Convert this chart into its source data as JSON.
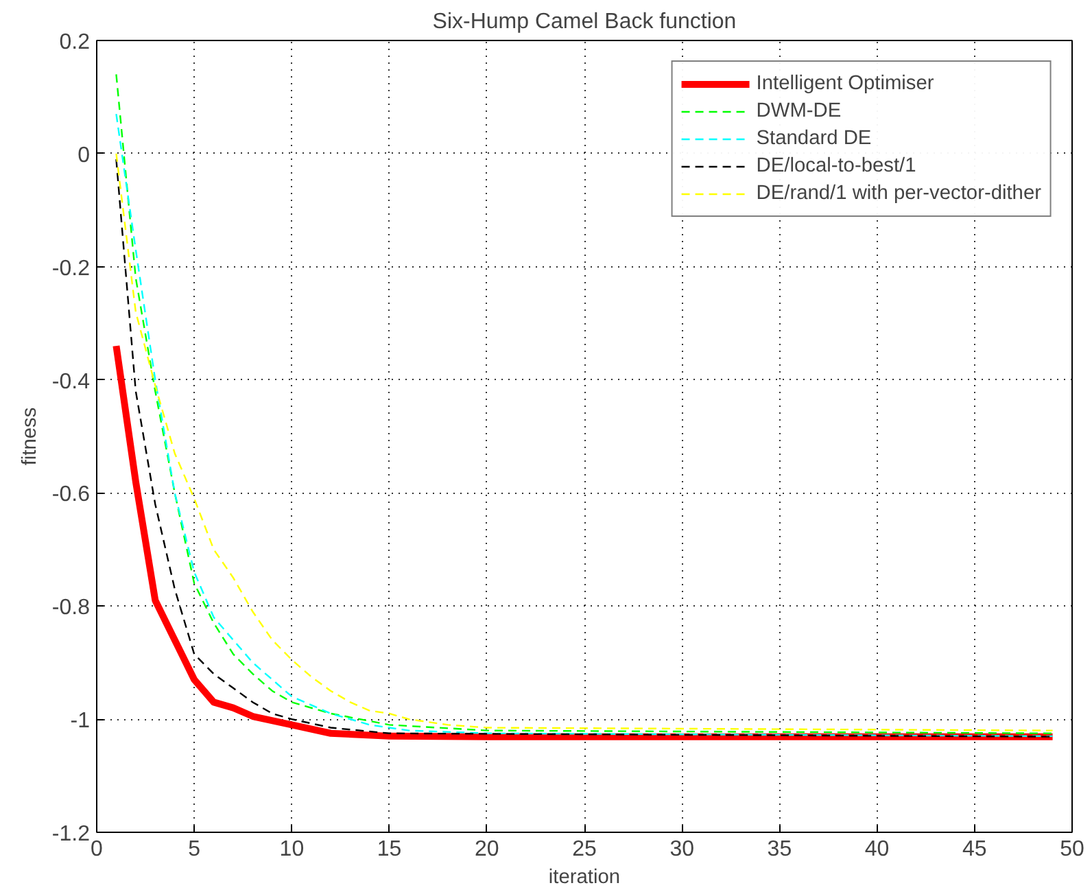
{
  "chart_data": {
    "type": "line",
    "title": "Six-Hump Camel Back function",
    "xlabel": "iteration",
    "ylabel": "fitness",
    "xlim": [
      0,
      50
    ],
    "ylim": [
      -1.2,
      0.2
    ],
    "xticks": [
      0,
      5,
      10,
      15,
      20,
      25,
      30,
      35,
      40,
      45,
      50
    ],
    "yticks": [
      -1.2,
      -1,
      -0.8,
      -0.6,
      -0.4,
      -0.2,
      0,
      0.2
    ],
    "grid": true,
    "legend": "top right",
    "marker": "none",
    "series": [
      {
        "name": "Intelligent Optimiser",
        "color": "#ff0000",
        "line_style": "solid",
        "x": [
          1,
          2,
          3,
          4,
          5,
          6,
          7,
          8,
          10,
          12,
          15,
          20,
          49
        ],
        "values": [
          -0.34,
          -0.58,
          -0.79,
          -0.86,
          -0.93,
          -0.97,
          -0.98,
          -0.995,
          -1.01,
          -1.025,
          -1.03,
          -1.031,
          -1.031
        ]
      },
      {
        "name": "DWM-DE",
        "color": "#00ff00",
        "line_style": "dashed",
        "x": [
          1,
          2,
          3,
          4,
          5,
          6,
          7,
          8,
          9,
          10,
          12,
          15,
          20,
          49
        ],
        "values": [
          0.14,
          -0.22,
          -0.42,
          -0.6,
          -0.76,
          -0.83,
          -0.885,
          -0.92,
          -0.95,
          -0.97,
          -0.99,
          -1.01,
          -1.02,
          -1.025
        ]
      },
      {
        "name": "Standard DE",
        "color": "#00ffff",
        "line_style": "dashed",
        "x": [
          1,
          2,
          3,
          4,
          5,
          6,
          7,
          8,
          9,
          10,
          12,
          14,
          16,
          20,
          49
        ],
        "values": [
          0.07,
          -0.17,
          -0.4,
          -0.6,
          -0.74,
          -0.82,
          -0.86,
          -0.9,
          -0.93,
          -0.96,
          -0.99,
          -1.01,
          -1.02,
          -1.025,
          -1.03
        ]
      },
      {
        "name": "DE/local-to-best/1",
        "color": "#000000",
        "line_style": "dashed",
        "x": [
          1,
          2,
          3,
          4,
          5,
          6,
          7,
          8,
          9,
          10,
          12,
          15,
          49
        ],
        "values": [
          -0.01,
          -0.42,
          -0.62,
          -0.77,
          -0.885,
          -0.92,
          -0.945,
          -0.97,
          -0.99,
          -1.0,
          -1.015,
          -1.025,
          -1.031
        ]
      },
      {
        "name": "DE/rand/1 with per-vector-dither",
        "color": "#ffff00",
        "line_style": "dashed",
        "x": [
          1,
          2,
          3,
          4,
          5,
          6,
          7,
          8,
          9,
          10,
          11,
          12,
          13,
          14,
          15,
          16,
          18,
          20,
          49
        ],
        "values": [
          0.0,
          -0.28,
          -0.41,
          -0.53,
          -0.61,
          -0.7,
          -0.75,
          -0.81,
          -0.86,
          -0.895,
          -0.925,
          -0.95,
          -0.97,
          -0.985,
          -0.99,
          -1.0,
          -1.01,
          -1.015,
          -1.02
        ]
      }
    ]
  }
}
